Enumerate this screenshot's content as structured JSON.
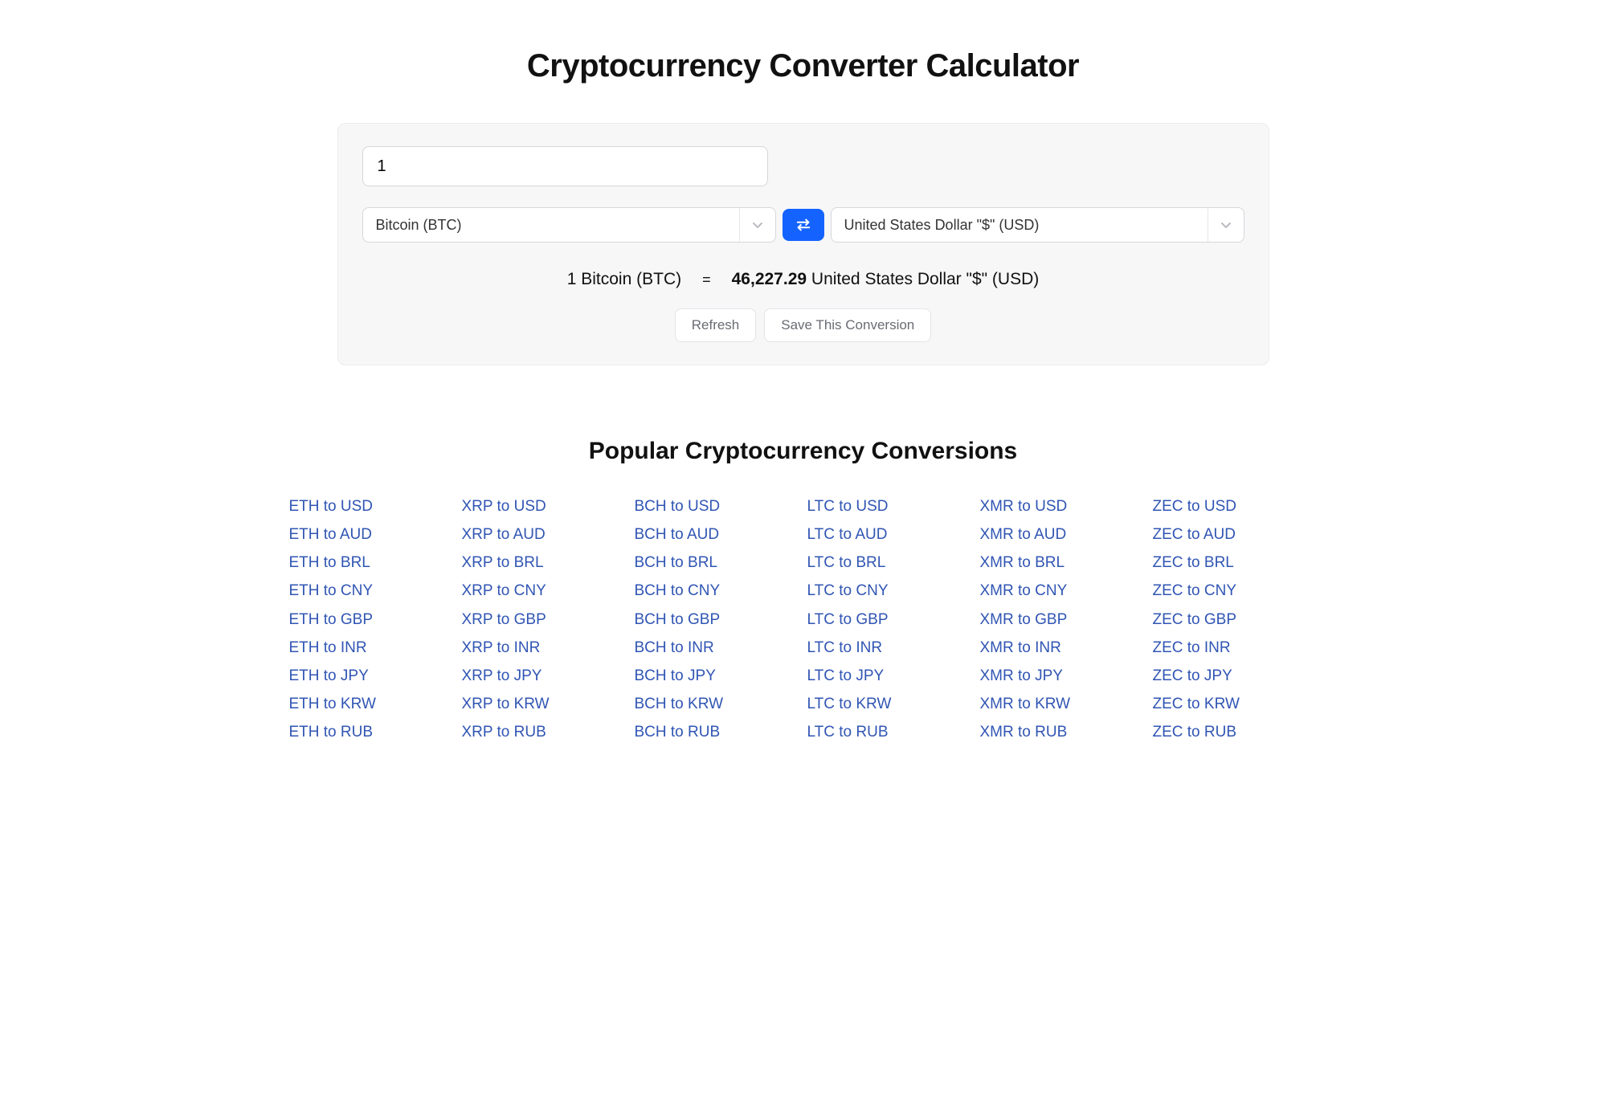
{
  "page": {
    "title": "Cryptocurrency Converter Calculator",
    "popular_title": "Popular Cryptocurrency Conversions"
  },
  "converter": {
    "amount_value": "1",
    "from_label": "Bitcoin (BTC)",
    "to_label": "United States Dollar \"$\" (USD)",
    "result_from": "1 Bitcoin (BTC)",
    "result_eq": "=",
    "result_rate": "46,227.29",
    "result_to_label": "United States Dollar \"$\" (USD)",
    "refresh_label": "Refresh",
    "save_label": "Save This Conversion"
  },
  "colors": {
    "accent": "#1463ff",
    "link": "#3055b3",
    "card_bg": "#f7f7f8",
    "border": "#d5d7db"
  },
  "popular": {
    "cryptos": [
      "ETH",
      "XRP",
      "BCH",
      "LTC",
      "XMR",
      "ZEC"
    ],
    "fiats": [
      "USD",
      "AUD",
      "BRL",
      "CNY",
      "GBP",
      "INR",
      "JPY",
      "KRW",
      "RUB"
    ]
  }
}
